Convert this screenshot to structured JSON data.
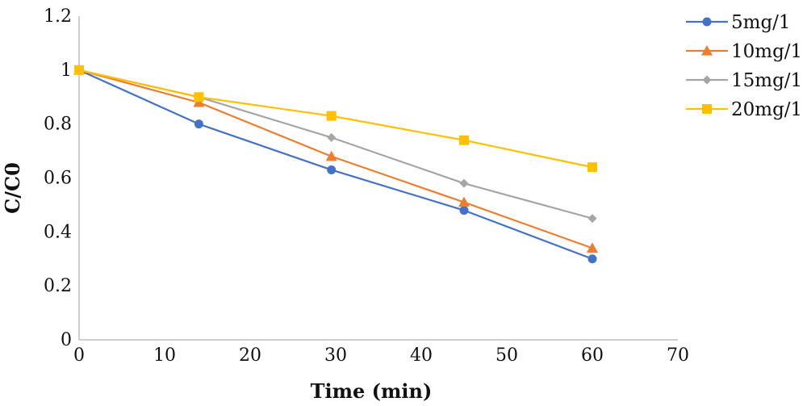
{
  "chart_data": {
    "type": "line",
    "title": "",
    "xlabel": "Time (min)",
    "ylabel": "C/C0",
    "xlim": [
      0,
      70
    ],
    "ylim": [
      0,
      1.2
    ],
    "x_ticks": [
      "0",
      "10",
      "20",
      "30",
      "40",
      "50",
      "60",
      "70"
    ],
    "y_ticks": [
      "0",
      "0.2",
      "0.4",
      "0.6",
      "0.8",
      "1",
      "1.2"
    ],
    "grid": false,
    "legend_position": "right",
    "x": [
      0,
      14,
      29.5,
      45,
      60
    ],
    "series": [
      {
        "name": "5mg/1",
        "color": "#4472C4",
        "marker": "circle",
        "values": [
          1.0,
          0.8,
          0.63,
          0.48,
          0.3
        ]
      },
      {
        "name": "10mg/1",
        "color": "#ED7D31",
        "marker": "triangle",
        "values": [
          1.0,
          0.88,
          0.68,
          0.51,
          0.34
        ]
      },
      {
        "name": "15mg/1",
        "color": "#A5A5A5",
        "marker": "diamond",
        "values": [
          1.0,
          0.9,
          0.75,
          0.58,
          0.45
        ]
      },
      {
        "name": "20mg/1",
        "color": "#FFC000",
        "marker": "square",
        "values": [
          1.0,
          0.9,
          0.83,
          0.74,
          0.64
        ]
      }
    ]
  }
}
